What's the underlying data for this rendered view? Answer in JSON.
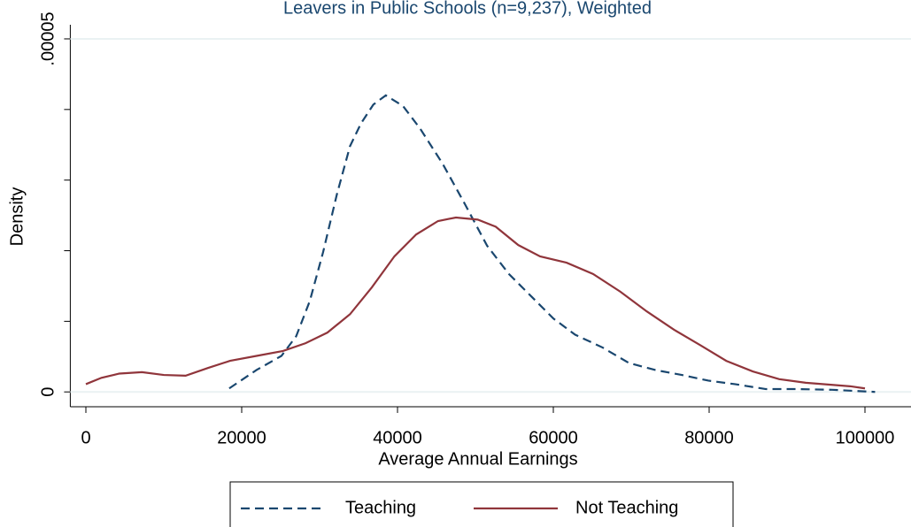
{
  "chart_data": {
    "type": "line",
    "title": "Leavers in Public Schools (n=9,237), Weighted",
    "x_label": "Average Annual Earnings",
    "y_label": "Density",
    "xlim": [
      -2000,
      106000
    ],
    "ylim": [
      -2.1e-06,
      5.2e-05
    ],
    "xticks": [
      0,
      20000,
      40000,
      60000,
      80000,
      100000
    ],
    "yticks": [
      0,
      {
        "value": 5e-05,
        "label": ".00005"
      }
    ],
    "yticks_minor": [
      1e-05,
      2e-05,
      3e-05,
      4e-05
    ],
    "grid": true,
    "legend": "bottom",
    "series": [
      {
        "name": "Teaching",
        "color": "#1a476f",
        "dash": true,
        "x": [
          18400,
          21900,
          25100,
          27000,
          28750,
          30450,
          32200,
          33900,
          35300,
          36900,
          38500,
          40700,
          42900,
          45800,
          48600,
          51500,
          54300,
          57200,
          60000,
          62800,
          66300,
          69700,
          73100,
          76500,
          79900,
          83300,
          87300,
          91300,
          95800,
          101300
        ],
        "values": [
          5e-07,
          3.1e-06,
          5.1e-06,
          7.9e-06,
          1.29e-05,
          1.98e-05,
          2.79e-05,
          3.48e-05,
          3.8e-05,
          4.07e-05,
          4.2e-05,
          4.05e-05,
          3.73e-05,
          3.23e-05,
          2.67e-05,
          2.07e-05,
          1.67e-05,
          1.35e-05,
          1.04e-05,
          8.1e-06,
          6.3e-06,
          4.1e-06,
          3.1e-06,
          2.4e-06,
          1.6e-06,
          1.1e-06,
          4e-07,
          4e-07,
          3e-07,
          0
        ]
      },
      {
        "name": "Not Teaching",
        "color": "#90353b",
        "dash": false,
        "x": [
          0,
          2000,
          4300,
          7200,
          10000,
          12800,
          15700,
          18500,
          21900,
          25300,
          28200,
          31000,
          33900,
          36700,
          39600,
          42400,
          45200,
          47500,
          50300,
          52600,
          55500,
          58300,
          61700,
          65100,
          68600,
          72000,
          75500,
          78900,
          82200,
          85600,
          89000,
          92400,
          95800,
          98100,
          100000
        ],
        "values": [
          1.1e-06,
          2e-06,
          2.6e-06,
          2.8e-06,
          2.4e-06,
          2.3e-06,
          3.4e-06,
          4.4e-06,
          5.1e-06,
          5.8e-06,
          6.9e-06,
          8.4e-06,
          1.1e-05,
          1.48e-05,
          1.92e-05,
          2.23e-05,
          2.42e-05,
          2.47e-05,
          2.44e-05,
          2.34e-05,
          2.08e-05,
          1.92e-05,
          1.83e-05,
          1.67e-05,
          1.42e-05,
          1.14e-05,
          8.8e-06,
          6.6e-06,
          4.4e-06,
          2.9e-06,
          1.8e-06,
          1.3e-06,
          1e-06,
          8e-07,
          5e-07
        ]
      }
    ]
  }
}
